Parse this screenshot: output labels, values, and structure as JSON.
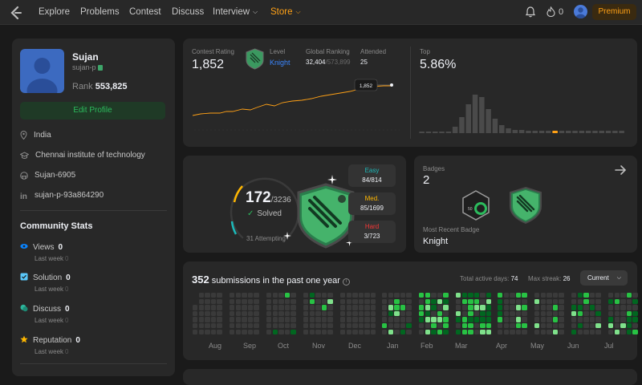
{
  "nav": {
    "items": [
      "Explore",
      "Problems",
      "Contest",
      "Discuss",
      "Interview",
      "Store"
    ],
    "notifications_count": "0",
    "premium_label": "Premium"
  },
  "profile": {
    "name": "Sujan",
    "handle": "sujan-p",
    "rank_label": "Rank",
    "rank_value": "553,825",
    "edit_label": "Edit Profile",
    "location": "India",
    "school": "Chennai institute of technology",
    "github": "Sujan-6905",
    "linkedin": "sujan-p-93a864290"
  },
  "community": {
    "title": "Community Stats",
    "stats": [
      {
        "label": "Views",
        "value": "0",
        "sub": "Last week",
        "sub_value": "0",
        "color": "#0a84ff"
      },
      {
        "label": "Solution",
        "value": "0",
        "sub": "Last week",
        "sub_value": "0",
        "color": "#5ac8fa"
      },
      {
        "label": "Discuss",
        "value": "0",
        "sub": "Last week",
        "sub_value": "0",
        "color": "#2db59c"
      },
      {
        "label": "Reputation",
        "value": "0",
        "sub": "Last week",
        "sub_value": "0",
        "color": "#ffb800"
      }
    ]
  },
  "contest": {
    "rating_label": "Contest Rating",
    "rating": "1,852",
    "level_label": "Level",
    "level": "Knight",
    "global_label": "Global Ranking",
    "global_rank": "32,404",
    "global_total": "/573,899",
    "attended_label": "Attended",
    "attended": "25",
    "top_label": "Top",
    "top_value": "5.86%",
    "tooltip": "1,852",
    "histogram_bars": 31,
    "histogram_highlight_index": 20
  },
  "solved": {
    "count": "172",
    "total": "/3236",
    "label": "Solved",
    "attempting": "31 Attempting",
    "solved_fraction": 0.053,
    "easy": {
      "label": "Easy",
      "value": "84/814",
      "color": "#1cbaba"
    },
    "medium": {
      "label": "Med.",
      "value": "85/1699",
      "color": "#ffb700"
    },
    "hard": {
      "label": "Hard",
      "value": "3/723",
      "color": "#f63737"
    }
  },
  "badges": {
    "label": "Badges",
    "count": "2",
    "recent_label": "Most Recent Badge",
    "recent": "Knight"
  },
  "submissions": {
    "count": "352",
    "text": "submissions in the past one year",
    "active_label": "Total active days:",
    "active_days": "74",
    "streak_label": "Max streak:",
    "max_streak": "26",
    "dropdown": "Current",
    "months": [
      "Aug",
      "Sep",
      "Oct",
      "Nov",
      "Dec",
      "Jan",
      "Feb",
      "Mar",
      "Apr",
      "May",
      "Jun",
      "Jul"
    ],
    "empty_color": "#3a3a3a",
    "level_colors": [
      "#016620",
      "#28c244",
      "#7fe18b"
    ]
  }
}
